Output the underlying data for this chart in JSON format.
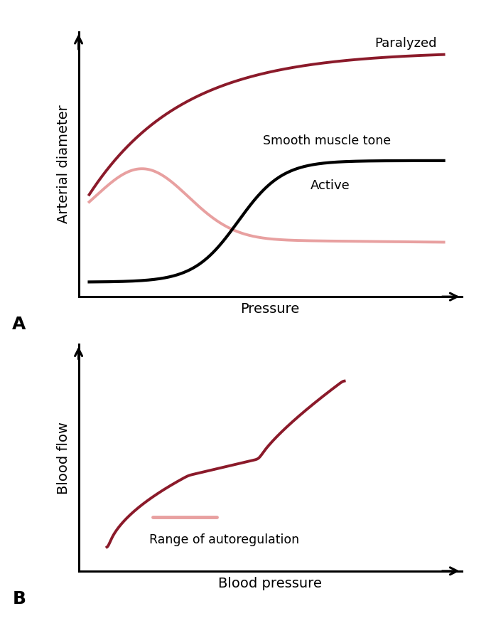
{
  "background_color": "#ffffff",
  "panel_A": {
    "xlabel": "Pressure",
    "ylabel": "Arterial diameter",
    "paralyzed_color": "#8B1A2A",
    "smooth_color": "#E8A0A0",
    "active_color": "#000000",
    "paralyzed_label": "Paralyzed",
    "smooth_label": "Smooth muscle tone",
    "active_label": "Active",
    "label_A": "A",
    "line_width": 2.8
  },
  "panel_B": {
    "xlabel": "Blood pressure",
    "ylabel": "Blood flow",
    "flow_color": "#8B1A2A",
    "autoreg_color": "#E8A0A0",
    "autoreg_label": "Range of autoregulation",
    "label_B": "B",
    "line_width": 2.8
  }
}
